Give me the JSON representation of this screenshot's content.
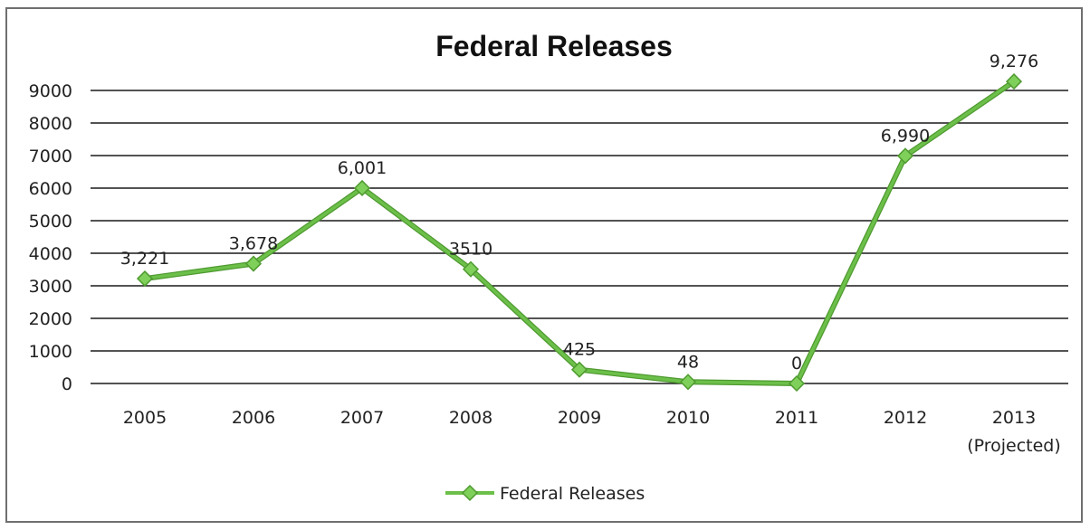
{
  "chart_data": {
    "type": "line",
    "title": "Federal Releases",
    "categories": [
      "2005",
      "2006",
      "2007",
      "2008",
      "2009",
      "2010",
      "2011",
      "2012",
      "2013"
    ],
    "category_sublabels": [
      "",
      "",
      "",
      "",
      "",
      "",
      "",
      "",
      "(Projected)"
    ],
    "series": [
      {
        "name": "Federal Releases",
        "values": [
          3221,
          3678,
          6001,
          3510,
          425,
          48,
          0,
          6990,
          9276
        ],
        "data_labels": [
          "3,221",
          "3,678",
          "6,001",
          "3510",
          "425",
          "48",
          "0",
          "6,990",
          "9,276"
        ],
        "color": "#6cc04a"
      }
    ],
    "y_ticks": [
      "0",
      "1000",
      "2000",
      "3000",
      "4000",
      "5000",
      "6000",
      "7000",
      "8000",
      "9000"
    ],
    "ylim": [
      0,
      9000
    ],
    "grid": true,
    "legend": "bottom",
    "xlabel": "",
    "ylabel": ""
  }
}
